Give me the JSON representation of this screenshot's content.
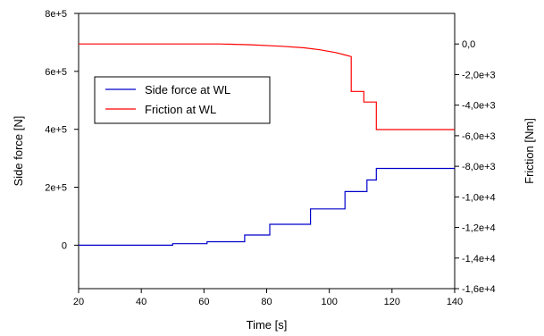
{
  "chart_data": {
    "type": "line",
    "title": "",
    "xlabel": "Time [s]",
    "ylabel_left": "Side force [N]",
    "ylabel_right": "Friction [Nm]",
    "xlim": [
      20,
      140
    ],
    "ylim_left": [
      -150000,
      800000
    ],
    "ylim_right": [
      -16000,
      2000
    ],
    "x_ticks": [
      20,
      40,
      60,
      80,
      100,
      120,
      140
    ],
    "y_left_ticks": [
      {
        "value": 0,
        "label": "0"
      },
      {
        "value": 200000,
        "label": "2e+5"
      },
      {
        "value": 400000,
        "label": "4e+5"
      },
      {
        "value": 600000,
        "label": "6e+5"
      },
      {
        "value": 800000,
        "label": "8e+5"
      }
    ],
    "y_right_ticks": [
      {
        "value": 0,
        "label": "0,0"
      },
      {
        "value": -2000,
        "label": "-2,0e+3"
      },
      {
        "value": -4000,
        "label": "-4,0e+3"
      },
      {
        "value": -6000,
        "label": "-6,0e+3"
      },
      {
        "value": -8000,
        "label": "-8,0e+3"
      },
      {
        "value": -10000,
        "label": "-1,0e+4"
      },
      {
        "value": -12000,
        "label": "-1,2e+4"
      },
      {
        "value": -14000,
        "label": "-1,4e+4"
      },
      {
        "value": -16000,
        "label": "-1,6e+4"
      }
    ],
    "grid": false,
    "legend_position": "upper-left",
    "series": [
      {
        "name": "Side force at WL",
        "axis": "left",
        "color": "#0000cc",
        "points": [
          [
            20,
            0
          ],
          [
            50,
            0
          ],
          [
            50,
            5000
          ],
          [
            61,
            5000
          ],
          [
            61,
            12000
          ],
          [
            73,
            12000
          ],
          [
            73,
            35000
          ],
          [
            81,
            35000
          ],
          [
            81,
            72000
          ],
          [
            94,
            72000
          ],
          [
            94,
            125000
          ],
          [
            105,
            125000
          ],
          [
            105,
            185000
          ],
          [
            112,
            185000
          ],
          [
            112,
            225000
          ],
          [
            115,
            225000
          ],
          [
            115,
            265000
          ],
          [
            140,
            265000
          ]
        ]
      },
      {
        "name": "Friction at WL",
        "axis": "right",
        "color": "#ff0000",
        "points": [
          [
            20,
            0
          ],
          [
            65,
            0
          ],
          [
            75,
            -50
          ],
          [
            85,
            -150
          ],
          [
            92,
            -250
          ],
          [
            97,
            -380
          ],
          [
            102,
            -560
          ],
          [
            105,
            -720
          ],
          [
            107,
            -820
          ],
          [
            107,
            -3100
          ],
          [
            111,
            -3100
          ],
          [
            111,
            -3800
          ],
          [
            115,
            -3800
          ],
          [
            115,
            -5600
          ],
          [
            140,
            -5600
          ]
        ]
      }
    ]
  }
}
